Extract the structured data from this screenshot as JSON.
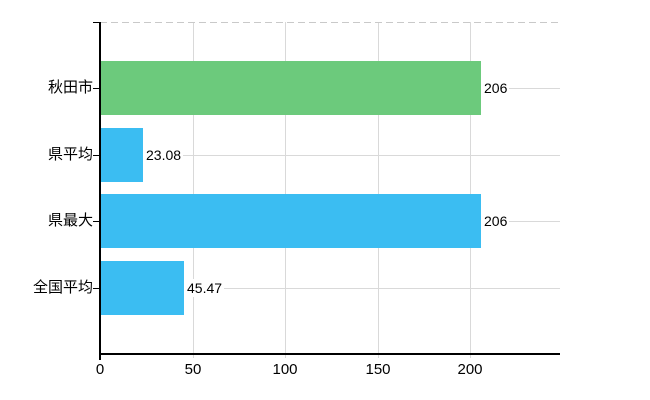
{
  "chart_data": {
    "type": "bar",
    "orientation": "horizontal",
    "title": "",
    "categories": [
      "秋田市",
      "県平均",
      "県最大",
      "全国平均"
    ],
    "values": [
      206,
      23.08,
      206,
      45.47
    ],
    "value_labels": [
      "206",
      "23.08",
      "206",
      "45.47"
    ],
    "bar_colors": [
      "#6cca7c",
      "#3bbdf2",
      "#3bbdf2",
      "#3bbdf2"
    ],
    "x_tick_values": [
      0,
      50,
      100,
      150,
      200
    ],
    "x_tick_labels": [
      "0",
      "50",
      "100",
      "150",
      "200"
    ],
    "xlim": [
      0,
      248.6
    ],
    "grid": "on",
    "legend": "none",
    "colors": {
      "grid": "#d9d9d9",
      "dashed_boundary": "#c9c9c9",
      "axis": "#000000",
      "text": "#000000",
      "background": "#ffffff"
    }
  }
}
